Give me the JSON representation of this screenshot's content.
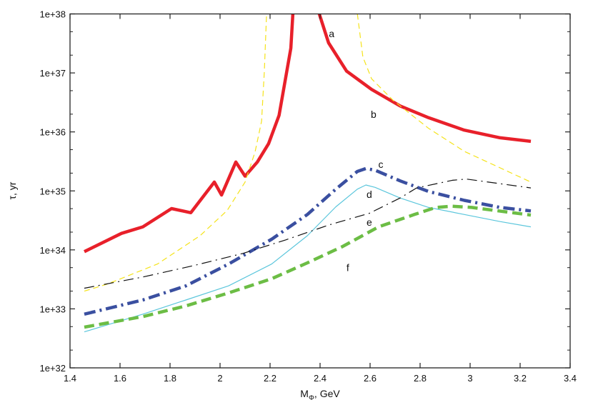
{
  "chart_data": {
    "type": "line",
    "xlabel": "M",
    "xlabel_sub": "Φ",
    "xlabel_suffix": ", GeV",
    "ylabel": "τ, yr",
    "xlim": [
      1.4,
      3.4
    ],
    "ylim": [
      1e+32,
      1e+38
    ],
    "yscale": "log",
    "grid": false,
    "legend": "none",
    "x_ticks": [
      "1.4",
      "1.6",
      "1.8",
      "2",
      "2.2",
      "2.4",
      "2.6",
      "2.8",
      "3",
      "3.2",
      "3.4"
    ],
    "y_ticks": [
      "1e+32",
      "1e+33",
      "1e+34",
      "1e+35",
      "1e+36",
      "1e+37",
      "1e+38"
    ],
    "series": [
      {
        "label": "a",
        "color": "#e8202a",
        "style": "solid-thick",
        "segments": [
          [
            [
              1.457,
              33.97
            ],
            [
              1.606,
              34.28
            ],
            [
              1.691,
              34.39
            ],
            [
              1.806,
              34.7
            ],
            [
              1.883,
              34.63
            ],
            [
              1.977,
              35.15
            ],
            [
              2.006,
              34.93
            ],
            [
              2.063,
              35.49
            ],
            [
              2.1,
              35.25
            ],
            [
              2.149,
              35.49
            ],
            [
              2.194,
              35.8
            ],
            [
              2.236,
              36.28
            ],
            [
              2.283,
              37.42
            ],
            [
              2.291,
              38.0
            ]
          ],
          [
            [
              2.397,
              38.0
            ],
            [
              2.434,
              37.51
            ],
            [
              2.506,
              37.03
            ],
            [
              2.606,
              36.72
            ],
            [
              2.72,
              36.44
            ],
            [
              2.834,
              36.24
            ],
            [
              2.977,
              36.03
            ],
            [
              3.12,
              35.9
            ],
            [
              3.243,
              35.84
            ]
          ]
        ]
      },
      {
        "label": "b",
        "color": "#f5e31a",
        "style": "dashed-thin",
        "segments": [
          [
            [
              1.457,
              33.3
            ],
            [
              1.549,
              33.42
            ],
            [
              1.749,
              33.76
            ],
            [
              1.92,
              34.24
            ],
            [
              2.029,
              34.67
            ],
            [
              2.1,
              35.15
            ],
            [
              2.14,
              35.66
            ],
            [
              2.166,
              36.18
            ],
            [
              2.177,
              37.03
            ],
            [
              2.186,
              38.0
            ]
          ],
          [
            [
              2.549,
              38.0
            ],
            [
              2.571,
              37.27
            ],
            [
              2.606,
              36.9
            ],
            [
              2.691,
              36.54
            ],
            [
              2.834,
              36.06
            ],
            [
              2.977,
              35.67
            ],
            [
              3.12,
              35.39
            ],
            [
              3.243,
              35.15
            ]
          ]
        ]
      },
      {
        "label": "c",
        "color": "#3a4fa0",
        "style": "dashdot-thick",
        "segments": [
          [
            [
              1.457,
              32.91
            ],
            [
              1.691,
              33.15
            ],
            [
              1.863,
              33.39
            ],
            [
              2.034,
              33.76
            ],
            [
              2.206,
              34.18
            ],
            [
              2.349,
              34.6
            ],
            [
              2.463,
              35.03
            ],
            [
              2.549,
              35.33
            ],
            [
              2.583,
              35.38
            ],
            [
              2.62,
              35.35
            ],
            [
              2.72,
              35.17
            ],
            [
              2.834,
              34.99
            ],
            [
              2.977,
              34.84
            ],
            [
              3.12,
              34.72
            ],
            [
              3.243,
              34.66
            ]
          ]
        ]
      },
      {
        "label": "d",
        "color": "#5bc6dc",
        "style": "solid-thin",
        "segments": [
          [
            [
              1.457,
              32.61
            ],
            [
              1.691,
              32.91
            ],
            [
              1.863,
              33.15
            ],
            [
              2.034,
              33.39
            ],
            [
              2.206,
              33.76
            ],
            [
              2.349,
              34.24
            ],
            [
              2.463,
              34.73
            ],
            [
              2.549,
              35.03
            ],
            [
              2.583,
              35.1
            ],
            [
              2.62,
              35.06
            ],
            [
              2.72,
              34.88
            ],
            [
              2.834,
              34.72
            ],
            [
              2.977,
              34.6
            ],
            [
              3.12,
              34.48
            ],
            [
              3.243,
              34.39
            ]
          ]
        ]
      },
      {
        "label": "e",
        "color": "#111111",
        "style": "dashdot-thin",
        "segments": [
          [
            [
              1.457,
              33.35
            ],
            [
              1.691,
              33.54
            ],
            [
              1.891,
              33.73
            ],
            [
              2.091,
              33.94
            ],
            [
              2.263,
              34.17
            ],
            [
              2.434,
              34.42
            ],
            [
              2.597,
              34.62
            ],
            [
              2.72,
              34.88
            ],
            [
              2.786,
              35.05
            ],
            [
              2.929,
              35.18
            ],
            [
              2.986,
              35.2
            ],
            [
              3.243,
              35.05
            ]
          ]
        ]
      },
      {
        "label": "f",
        "color": "#6cbd45",
        "style": "dashed-thick",
        "segments": [
          [
            [
              1.457,
              32.69
            ],
            [
              1.691,
              32.87
            ],
            [
              1.863,
              33.05
            ],
            [
              2.034,
              33.27
            ],
            [
              2.206,
              33.51
            ],
            [
              2.349,
              33.78
            ],
            [
              2.491,
              34.06
            ],
            [
              2.634,
              34.39
            ],
            [
              2.777,
              34.6
            ],
            [
              2.863,
              34.72
            ],
            [
              2.929,
              34.74
            ],
            [
              3.006,
              34.72
            ],
            [
              3.243,
              34.59
            ]
          ]
        ]
      }
    ],
    "annotations": [
      {
        "text": "a",
        "x": 2.446,
        "y": 37.67
      },
      {
        "text": "b",
        "x": 2.614,
        "y": 36.3
      },
      {
        "text": "c",
        "x": 2.643,
        "y": 35.45
      },
      {
        "text": "d",
        "x": 2.597,
        "y": 34.94
      },
      {
        "text": "e",
        "x": 2.597,
        "y": 34.47
      },
      {
        "text": "f",
        "x": 2.511,
        "y": 33.7
      }
    ]
  }
}
